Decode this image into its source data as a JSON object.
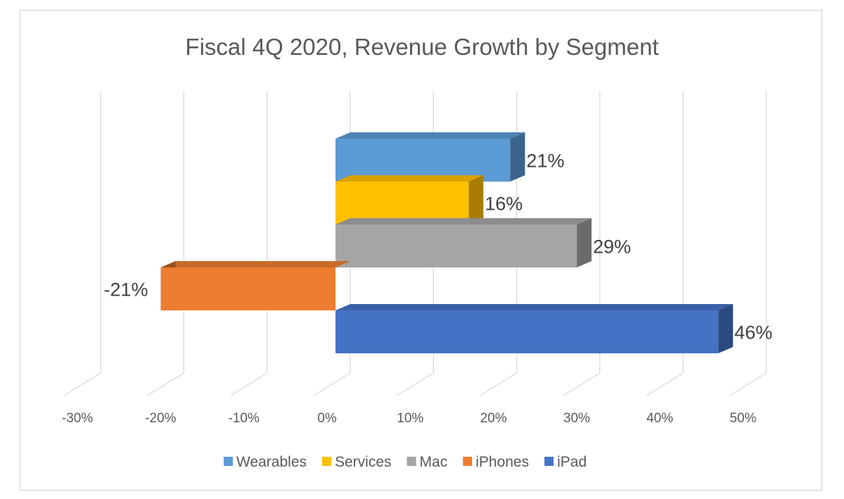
{
  "chart_data": {
    "type": "bar",
    "orientation": "horizontal",
    "three_d": true,
    "title": "Fiscal 4Q 2020, Revenue Growth by Segment",
    "xlabel": "",
    "ylabel": "",
    "xlim": [
      -30,
      50
    ],
    "x_ticks": [
      -30,
      -20,
      -10,
      0,
      10,
      20,
      30,
      40,
      50
    ],
    "x_tick_labels": [
      "-30%",
      "-20%",
      "-10%",
      "0%",
      "10%",
      "20%",
      "30%",
      "40%",
      "50%"
    ],
    "grid": true,
    "legend_position": "bottom",
    "series": [
      {
        "name": "Wearables",
        "value": 21,
        "label": "21%",
        "color": "#5B9BD5"
      },
      {
        "name": "Services",
        "value": 16,
        "label": "16%",
        "color": "#FFC000"
      },
      {
        "name": "Mac",
        "value": 29,
        "label": "29%",
        "color": "#A5A5A5"
      },
      {
        "name": "iPhones",
        "value": -21,
        "label": "-21%",
        "color": "#ED7D31"
      },
      {
        "name": "iPad",
        "value": 46,
        "label": "46%",
        "color": "#4472C4"
      }
    ]
  }
}
